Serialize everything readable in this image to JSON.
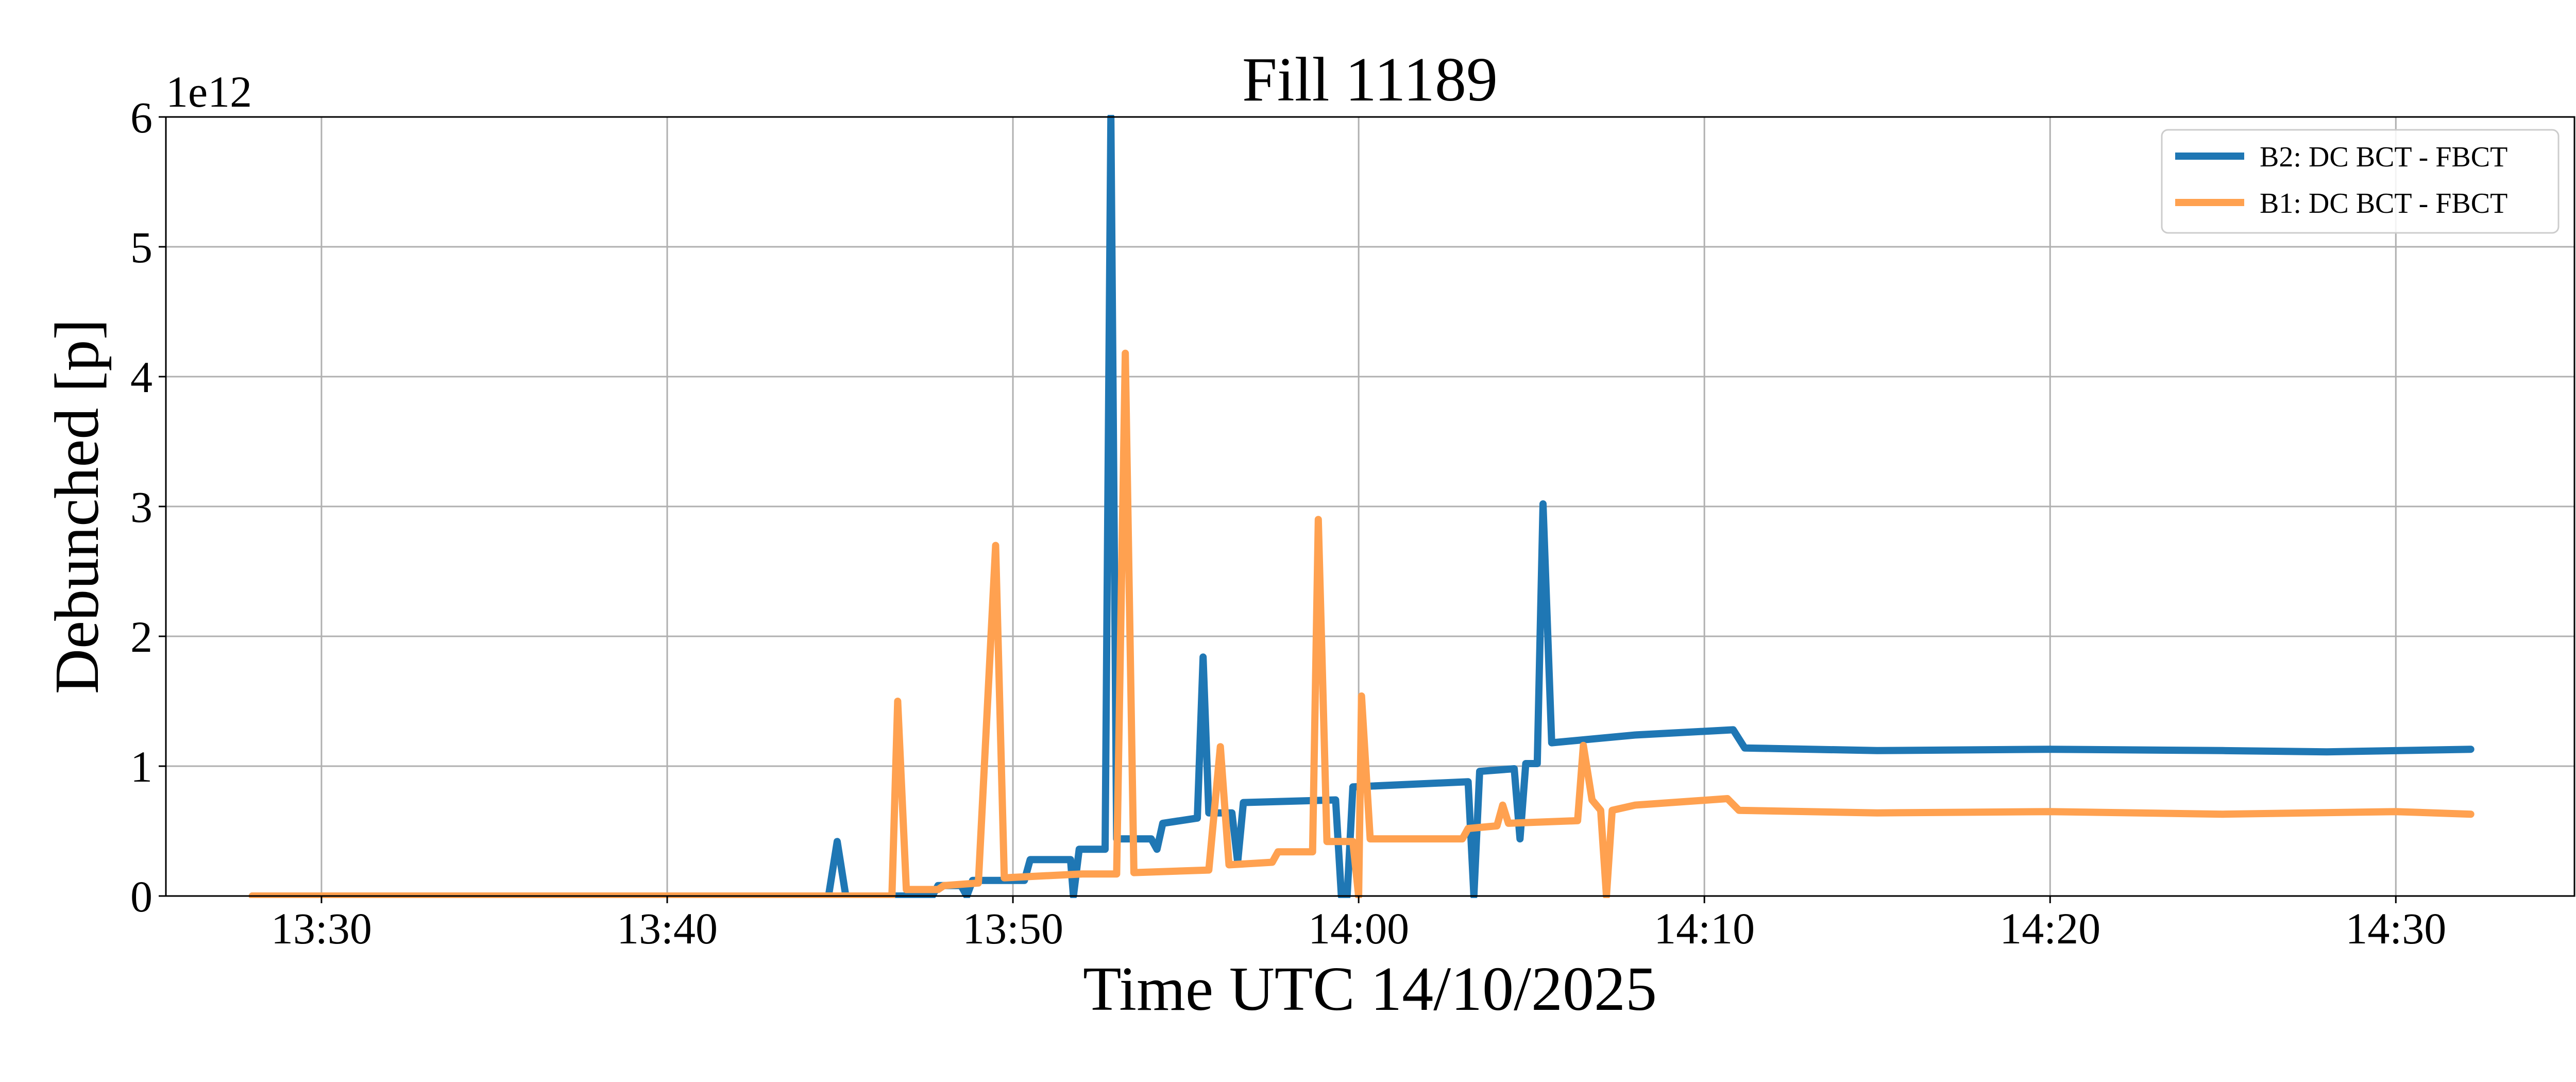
{
  "chart_data": {
    "type": "line",
    "title": "Fill 11189",
    "xlabel": "Time UTC 14/10/2025",
    "ylabel": "Debunched [p]",
    "y_offset_label": "1e12",
    "x_unit": "time (UTC, 14/10/2025)",
    "y_unit": "protons (x1e12)",
    "xlim": [
      "13:25:30",
      "14:35:10"
    ],
    "ylim": [
      0,
      6
    ],
    "x_ticks": [
      "13:30",
      "13:40",
      "13:50",
      "14:00",
      "14:10",
      "14:20",
      "14:30"
    ],
    "y_ticks": [
      "0",
      "1",
      "2",
      "3",
      "4",
      "5",
      "6"
    ],
    "grid": true,
    "legend_position": "top-right",
    "series": [
      {
        "name": "B2: DC BCT - FBCT",
        "color": "#1f77b4",
        "points": [
          [
            "13:28:00",
            0.0
          ],
          [
            "13:44:40",
            0.0
          ],
          [
            "13:44:55",
            0.42
          ],
          [
            "13:45:10",
            0.0
          ],
          [
            "13:47:40",
            0.0
          ],
          [
            "13:47:50",
            0.08
          ],
          [
            "13:48:30",
            0.08
          ],
          [
            "13:48:40",
            0.0
          ],
          [
            "13:48:50",
            0.12
          ],
          [
            "13:50:20",
            0.12
          ],
          [
            "13:50:30",
            0.28
          ],
          [
            "13:51:40",
            0.28
          ],
          [
            "13:51:45",
            0.0
          ],
          [
            "13:51:55",
            0.36
          ],
          [
            "13:52:40",
            0.36
          ],
          [
            "13:52:50",
            6.0
          ],
          [
            "13:53:00",
            0.44
          ],
          [
            "13:54:00",
            0.44
          ],
          [
            "13:54:10",
            0.36
          ],
          [
            "13:54:20",
            0.56
          ],
          [
            "13:55:20",
            0.6
          ],
          [
            "13:55:30",
            1.84
          ],
          [
            "13:55:40",
            0.64
          ],
          [
            "13:56:20",
            0.64
          ],
          [
            "13:56:30",
            0.26
          ],
          [
            "13:56:40",
            0.72
          ],
          [
            "13:59:20",
            0.74
          ],
          [
            "13:59:30",
            0.0
          ],
          [
            "13:59:40",
            0.0
          ],
          [
            "13:59:50",
            0.84
          ],
          [
            "14:03:10",
            0.88
          ],
          [
            "14:03:20",
            0.0
          ],
          [
            "14:03:30",
            0.96
          ],
          [
            "14:04:30",
            0.98
          ],
          [
            "14:04:40",
            0.44
          ],
          [
            "14:04:50",
            1.02
          ],
          [
            "14:05:10",
            1.02
          ],
          [
            "14:05:20",
            3.02
          ],
          [
            "14:05:35",
            1.18
          ],
          [
            "14:08:00",
            1.24
          ],
          [
            "14:10:50",
            1.28
          ],
          [
            "14:11:10",
            1.14
          ],
          [
            "14:15:00",
            1.12
          ],
          [
            "14:20:00",
            1.13
          ],
          [
            "14:25:00",
            1.12
          ],
          [
            "14:28:00",
            1.11
          ],
          [
            "14:32:10",
            1.13
          ]
        ]
      },
      {
        "name": "B1: DC BCT - FBCT",
        "color": "#ffa150",
        "points": [
          [
            "13:28:00",
            0.0
          ],
          [
            "13:46:30",
            0.0
          ],
          [
            "13:46:40",
            1.5
          ],
          [
            "13:46:55",
            0.05
          ],
          [
            "13:47:50",
            0.05
          ],
          [
            "13:48:00",
            0.08
          ],
          [
            "13:49:00",
            0.1
          ],
          [
            "13:49:30",
            2.7
          ],
          [
            "13:49:45",
            0.14
          ],
          [
            "13:52:00",
            0.17
          ],
          [
            "13:53:00",
            0.17
          ],
          [
            "13:53:15",
            4.18
          ],
          [
            "13:53:30",
            0.18
          ],
          [
            "13:55:40",
            0.2
          ],
          [
            "13:56:00",
            1.15
          ],
          [
            "13:56:15",
            0.24
          ],
          [
            "13:57:30",
            0.26
          ],
          [
            "13:57:40",
            0.34
          ],
          [
            "13:58:40",
            0.34
          ],
          [
            "13:58:50",
            2.9
          ],
          [
            "13:59:05",
            0.42
          ],
          [
            "13:59:50",
            0.42
          ],
          [
            "14:00:00",
            0.0
          ],
          [
            "14:00:05",
            1.54
          ],
          [
            "14:00:20",
            0.44
          ],
          [
            "14:03:00",
            0.44
          ],
          [
            "14:03:10",
            0.52
          ],
          [
            "14:04:00",
            0.54
          ],
          [
            "14:04:10",
            0.7
          ],
          [
            "14:04:20",
            0.56
          ],
          [
            "14:06:20",
            0.58
          ],
          [
            "14:06:30",
            1.16
          ],
          [
            "14:06:45",
            0.74
          ],
          [
            "14:07:00",
            0.66
          ],
          [
            "14:07:10",
            0.0
          ],
          [
            "14:07:20",
            0.66
          ],
          [
            "14:08:00",
            0.7
          ],
          [
            "14:10:40",
            0.75
          ],
          [
            "14:11:00",
            0.66
          ],
          [
            "14:15:00",
            0.64
          ],
          [
            "14:20:00",
            0.65
          ],
          [
            "14:25:00",
            0.63
          ],
          [
            "14:30:00",
            0.65
          ],
          [
            "14:32:10",
            0.63
          ]
        ]
      }
    ]
  }
}
